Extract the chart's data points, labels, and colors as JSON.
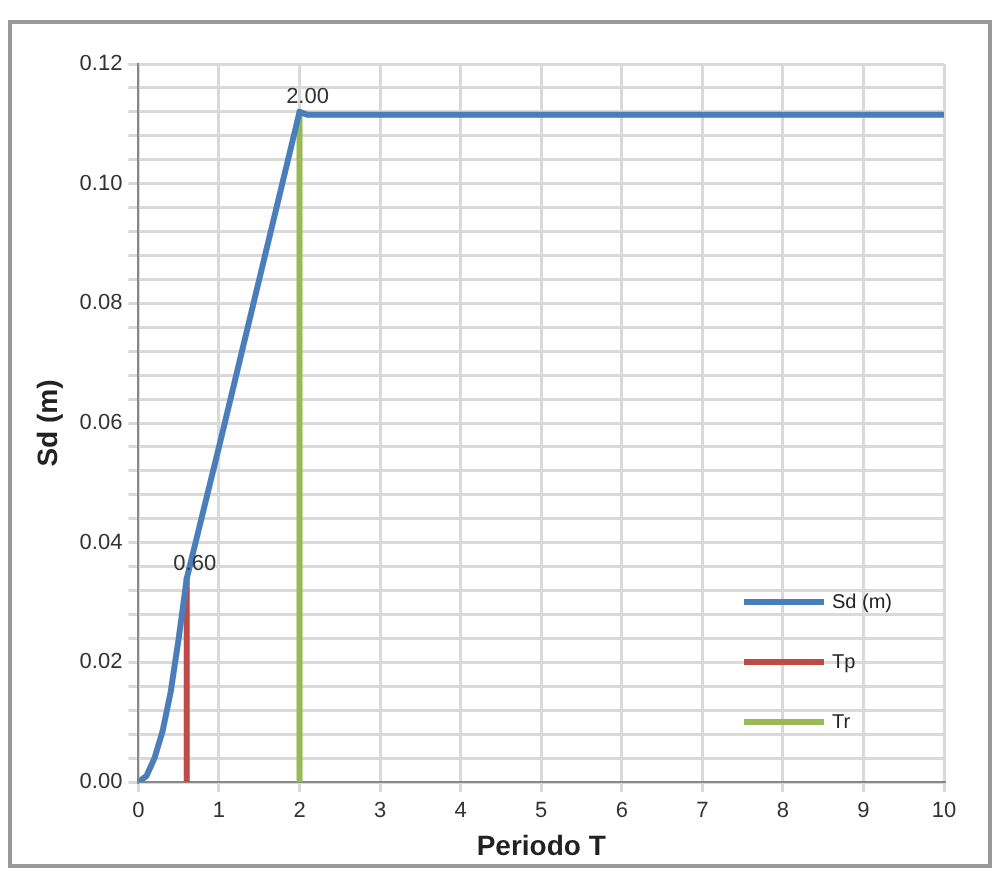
{
  "chart_data": {
    "type": "line",
    "xlabel": "Periodo T",
    "ylabel": "Sd (m)",
    "xlim": [
      0,
      10
    ],
    "xticks": [
      0,
      1,
      2,
      3,
      4,
      5,
      6,
      7,
      8,
      9,
      10
    ],
    "ylim": [
      0,
      0.12
    ],
    "yticks": [
      {
        "value": 0,
        "label": "0.00"
      },
      {
        "value": 0.004,
        "label": null
      },
      {
        "value": 0.008,
        "label": null
      },
      {
        "value": 0.012,
        "label": null
      },
      {
        "value": 0.016,
        "label": null
      },
      {
        "value": 0.02,
        "label": "0.02"
      },
      {
        "value": 0.024,
        "label": null
      },
      {
        "value": 0.028,
        "label": null
      },
      {
        "value": 0.032,
        "label": null
      },
      {
        "value": 0.036,
        "label": null
      },
      {
        "value": 0.04,
        "label": "0.04"
      },
      {
        "value": 0.044,
        "label": null
      },
      {
        "value": 0.048,
        "label": null
      },
      {
        "value": 0.052,
        "label": null
      },
      {
        "value": 0.056,
        "label": null
      },
      {
        "value": 0.06,
        "label": "0.06"
      },
      {
        "value": 0.064,
        "label": null
      },
      {
        "value": 0.068,
        "label": null
      },
      {
        "value": 0.072,
        "label": null
      },
      {
        "value": 0.076,
        "label": null
      },
      {
        "value": 0.08,
        "label": "0.08"
      },
      {
        "value": 0.084,
        "label": null
      },
      {
        "value": 0.088,
        "label": null
      },
      {
        "value": 0.092,
        "label": null
      },
      {
        "value": 0.096,
        "label": null
      },
      {
        "value": 0.1,
        "label": "0.10"
      },
      {
        "value": 0.104,
        "label": null
      },
      {
        "value": 0.108,
        "label": null
      },
      {
        "value": 0.112,
        "label": null
      },
      {
        "value": 0.116,
        "label": null
      },
      {
        "value": 0.12,
        "label": "0.12"
      }
    ],
    "grid": true,
    "legend": "bottom right",
    "marker": "none",
    "line_style": "solid",
    "series": [
      {
        "name": "Sd (m)",
        "color": "#4a7ebb",
        "x": [
          0,
          0.1,
          0.2,
          0.3,
          0.4,
          0.5,
          0.6,
          1.0,
          1.5,
          2.0,
          2.1,
          10
        ],
        "values": [
          0,
          0.001,
          0.004,
          0.0085,
          0.015,
          0.024,
          0.034,
          0.056,
          0.084,
          0.112,
          0.1115,
          0.1115
        ]
      },
      {
        "name": "Tp",
        "color": "#be4b48",
        "x": [
          0.6,
          0.6
        ],
        "values": [
          0,
          0.034
        ]
      },
      {
        "name": "Tr",
        "color": "#98b954",
        "x": [
          2,
          2
        ],
        "values": [
          0,
          0.112
        ]
      }
    ],
    "annotations": [
      {
        "text": "0.60",
        "x": 0.6,
        "y": 0.034
      },
      {
        "text": "2.00",
        "x": 2,
        "y": 0.112
      }
    ]
  }
}
